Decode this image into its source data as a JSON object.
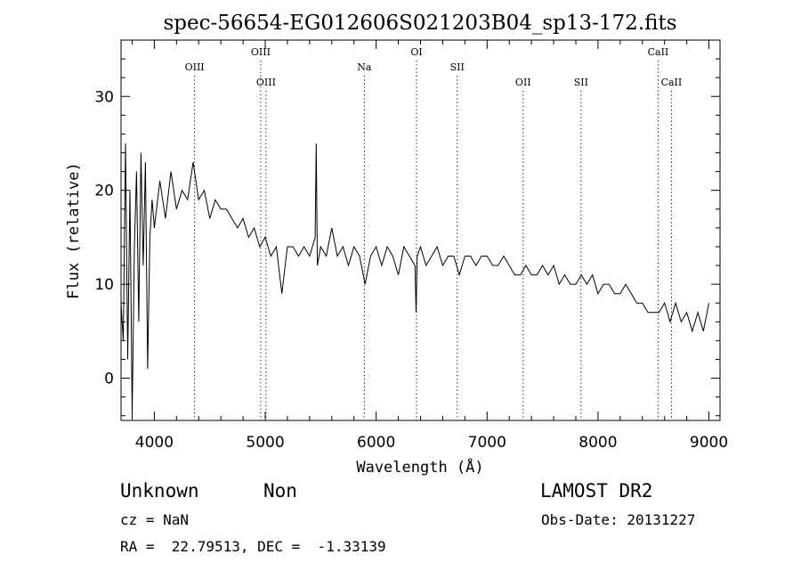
{
  "title": "spec-56654-EG012606S021203B04_sp13-172.fits",
  "info": {
    "obj_class": "Unknown",
    "obj_subclass": "Non",
    "survey": "LAMOST DR2",
    "cz": "cz = NaN",
    "obs_date": "Obs-Date: 20131227",
    "radec": "RA =  22.79513, DEC =  -1.33139"
  },
  "chart_data": {
    "type": "line",
    "title": "spec-56654-EG012606S021203B04_sp13-172.fits",
    "xlabel": "Wavelength (Å)",
    "ylabel": "Flux (relative)",
    "xlim": [
      3700,
      9100
    ],
    "ylim": [
      -4.5,
      36
    ],
    "xticks": [
      4000,
      5000,
      6000,
      7000,
      8000,
      9000
    ],
    "yticks": [
      0,
      10,
      20,
      30
    ],
    "grid": false,
    "line_color": "#000000",
    "lines": [
      {
        "label": "OIII",
        "x": 4363,
        "row": 2
      },
      {
        "label": "OIII",
        "x": 4959,
        "row": 1
      },
      {
        "label": "OIII",
        "x": 5007,
        "row": 3
      },
      {
        "label": "Na",
        "x": 5893,
        "row": 2
      },
      {
        "label": "OI",
        "x": 6364,
        "row": 1
      },
      {
        "label": "SII",
        "x": 6731,
        "row": 2
      },
      {
        "label": "OII",
        "x": 7325,
        "row": 3
      },
      {
        "label": "SII",
        "x": 7847,
        "row": 3
      },
      {
        "label": "CaII",
        "x": 8542,
        "row": 1
      },
      {
        "label": "CaII",
        "x": 8662,
        "row": 3
      }
    ],
    "series": [
      {
        "x": [
          3700,
          3720,
          3740,
          3760,
          3780,
          3800,
          3820,
          3840,
          3860,
          3880,
          3900,
          3920,
          3940,
          3960,
          3980,
          4000,
          4050,
          4100,
          4150,
          4200,
          4250,
          4300,
          4350,
          4400,
          4450,
          4500,
          4550,
          4600,
          4650,
          4700,
          4750,
          4800,
          4850,
          4900,
          4950,
          5000,
          5050,
          5100,
          5150,
          5200,
          5250,
          5300,
          5350,
          5400,
          5450,
          5460,
          5470,
          5500,
          5550,
          5600,
          5650,
          5700,
          5750,
          5800,
          5850,
          5900,
          5950,
          6000,
          6050,
          6100,
          6150,
          6200,
          6250,
          6300,
          6350,
          6360,
          6370,
          6400,
          6450,
          6500,
          6550,
          6600,
          6650,
          6700,
          6750,
          6800,
          6850,
          6900,
          6950,
          7000,
          7050,
          7100,
          7150,
          7200,
          7250,
          7300,
          7350,
          7400,
          7450,
          7500,
          7550,
          7600,
          7650,
          7700,
          7750,
          7800,
          7850,
          7900,
          7950,
          8000,
          8050,
          8100,
          8150,
          8200,
          8250,
          8300,
          8350,
          8400,
          8450,
          8500,
          8550,
          8600,
          8650,
          8700,
          8750,
          8800,
          8850,
          8900,
          8950,
          9000
        ],
        "y": [
          8,
          4,
          25,
          2,
          20,
          -4,
          14,
          22,
          6,
          24,
          12,
          23,
          1,
          15,
          19,
          16,
          21,
          17,
          22,
          18,
          20,
          19,
          23,
          19,
          20,
          17,
          19,
          18,
          18,
          17,
          16,
          17,
          15,
          16,
          14,
          15,
          13,
          14,
          9,
          14,
          14,
          13,
          14,
          13,
          15,
          25,
          12,
          14,
          13,
          16,
          13,
          14,
          12,
          14,
          13,
          10,
          13,
          14,
          12,
          14,
          13,
          11,
          14,
          13,
          12,
          7,
          13,
          14,
          12,
          13,
          14,
          12,
          13,
          13,
          11,
          13,
          13,
          12,
          13,
          13,
          12,
          12,
          13,
          12,
          11,
          11,
          12,
          11,
          11,
          12,
          11,
          12,
          10,
          11,
          10,
          10,
          11,
          10,
          11,
          9,
          10,
          10,
          9,
          9,
          10,
          9,
          8,
          8,
          7,
          7,
          7,
          8,
          6,
          8,
          6,
          7,
          5,
          7,
          5,
          8
        ]
      }
    ]
  }
}
